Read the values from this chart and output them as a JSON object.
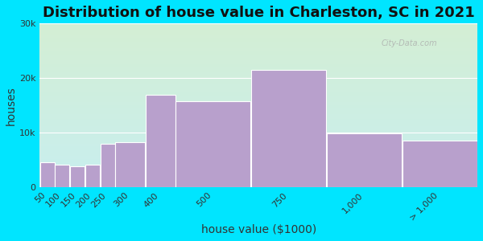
{
  "title": "Distribution of house value in Charleston, SC in 2021",
  "xlabel": "house value ($1000)",
  "ylabel": "houses",
  "bar_lefts": [
    50,
    100,
    150,
    200,
    250,
    300,
    400,
    500,
    750,
    1000,
    1250
  ],
  "bar_widths": [
    50,
    50,
    50,
    50,
    50,
    100,
    100,
    250,
    250,
    250,
    250
  ],
  "bar_labels": [
    "50",
    "100",
    "150",
    "200",
    "250",
    "300",
    "400",
    "500",
    "750",
    "1,000",
    "> 1,000"
  ],
  "values": [
    4500,
    4200,
    3800,
    4200,
    8000,
    8200,
    17000,
    15800,
    21500,
    9800,
    8500
  ],
  "bar_color": "#b8a0cc",
  "bar_edge_color": "#ffffff",
  "background_outer": "#00e5ff",
  "background_grad_top": "#d4eed4",
  "background_grad_bottom": "#c8efef",
  "yticks": [
    0,
    10000,
    20000,
    30000
  ],
  "ytick_labels": [
    "0",
    "10k",
    "20k",
    "30k"
  ],
  "ylim": [
    0,
    30000
  ],
  "xlim": [
    50,
    1500
  ],
  "title_fontsize": 13,
  "axis_label_fontsize": 10,
  "tick_fontsize": 8,
  "watermark": "City-Data.com"
}
